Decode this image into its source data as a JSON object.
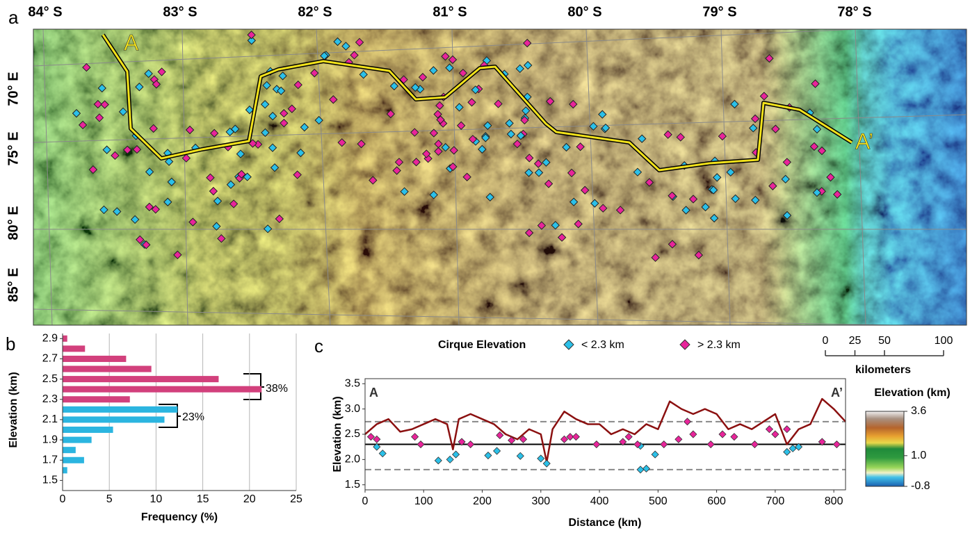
{
  "panel_labels": [
    "a",
    "b",
    "c"
  ],
  "chart_data": [
    {
      "type": "map",
      "top_labels": [
        "84° S",
        "83° S",
        "82° S",
        "81° S",
        "80° S",
        "79° S",
        "78° S"
      ],
      "left_labels": [
        "70° E",
        "75° E",
        "80° E",
        "85° E"
      ],
      "profile_labels": [
        "A",
        "A’"
      ],
      "colorbar": {
        "title": "Elevation (km)",
        "lim": [
          -0.8,
          3.6
        ],
        "ticks": [
          3.6,
          {
            "value": 1,
            "label": "1.0"
          },
          -0.8
        ]
      },
      "scale_bar": {
        "label": "kilometers",
        "lim": [
          0,
          100
        ],
        "ticks": [
          0,
          25,
          50,
          100
        ]
      }
    },
    {
      "type": "bar",
      "orientation": "horizontal",
      "xlabel": "Frequency (%)",
      "ylabel": "Elevation (km)",
      "y": [
        2.9,
        2.8,
        2.7,
        2.6,
        2.5,
        2.4,
        2.3,
        2.2,
        2.1,
        2.0,
        1.9,
        1.8,
        1.7,
        1.6
      ],
      "series": [
        {
          "color": "#d2407c",
          "values": [
            0.5,
            2.4,
            6.8,
            9.5,
            16.7,
            21.3,
            7.2,
            null,
            null,
            null,
            null,
            null,
            null,
            null
          ]
        },
        {
          "color": "#2bb5e0",
          "values": [
            null,
            null,
            null,
            null,
            null,
            null,
            null,
            12.3,
            10.9,
            5.4,
            3.1,
            1.4,
            2.3,
            0.5
          ]
        }
      ],
      "xlim": [
        0,
        25
      ],
      "xticks": [
        0,
        5,
        10,
        15,
        20,
        25
      ],
      "ylim": [
        1.4,
        2.95
      ],
      "yticks": [
        1.5,
        1.7,
        1.9,
        2.1,
        2.3,
        2.5,
        2.7,
        2.9
      ],
      "grid": true,
      "annotations": [
        "38%",
        "23%"
      ]
    },
    {
      "type": "line",
      "xlabel": "Distance (km)",
      "ylabel": "Elevation (km)",
      "end_labels": [
        "A",
        "A’"
      ],
      "legend_title": "Cirque Elevation",
      "xlim": [
        0,
        820
      ],
      "xticks": [
        0,
        100,
        200,
        300,
        400,
        500,
        600,
        700,
        800
      ],
      "ylim": [
        1.4,
        3.6
      ],
      "yticks": [
        1.5,
        {
          "value": 2,
          "label": "2.0"
        },
        2.5,
        {
          "value": 3,
          "label": "3.0"
        },
        3.5
      ],
      "hlines": [
        {
          "value": 2.3,
          "color": "#000000",
          "style": "solid"
        },
        {
          "value": 2.75,
          "color": "#888888",
          "style": "dashed"
        },
        {
          "value": 1.8,
          "color": "#888888",
          "style": "dashed"
        }
      ],
      "line": {
        "color": "#8b1010",
        "x": [
          0,
          20,
          40,
          60,
          80,
          100,
          120,
          140,
          150,
          160,
          180,
          200,
          220,
          240,
          260,
          280,
          300,
          310,
          320,
          340,
          360,
          380,
          400,
          420,
          440,
          460,
          480,
          500,
          520,
          540,
          560,
          580,
          600,
          620,
          640,
          660,
          680,
          700,
          720,
          740,
          760,
          780,
          800,
          820
        ],
        "values": [
          2.5,
          2.7,
          2.8,
          2.55,
          2.6,
          2.7,
          2.8,
          2.7,
          2.2,
          2.8,
          2.9,
          2.8,
          2.7,
          2.5,
          2.4,
          2.6,
          2.5,
          1.95,
          2.6,
          2.95,
          2.8,
          2.7,
          2.7,
          2.5,
          2.6,
          2.5,
          2.7,
          2.6,
          3.15,
          3.0,
          2.9,
          3.0,
          2.9,
          2.6,
          2.7,
          2.6,
          2.75,
          2.9,
          2.3,
          2.6,
          2.7,
          3.2,
          3.0,
          2.75
        ]
      },
      "series": [
        {
          "name": "< 2.3 km",
          "color": "#2bc0e8",
          "x": [
            20,
            30,
            125,
            145,
            155,
            210,
            225,
            265,
            300,
            310,
            470,
            480,
            495,
            720,
            730,
            740,
            470
          ],
          "values": [
            2.25,
            2.12,
            1.98,
            2.0,
            2.1,
            2.08,
            2.17,
            2.07,
            2.02,
            1.92,
            1.8,
            1.82,
            2.1,
            2.15,
            2.22,
            2.25,
            2.27
          ]
        },
        {
          "name": "> 2.3 km",
          "color": "#e8249a",
          "x": [
            10,
            20,
            85,
            95,
            165,
            180,
            230,
            250,
            270,
            340,
            350,
            360,
            395,
            440,
            450,
            465,
            510,
            535,
            550,
            560,
            590,
            610,
            630,
            665,
            690,
            700,
            720,
            780,
            805
          ],
          "values": [
            2.45,
            2.4,
            2.45,
            2.3,
            2.35,
            2.3,
            2.48,
            2.38,
            2.4,
            2.4,
            2.45,
            2.45,
            2.3,
            2.35,
            2.45,
            2.3,
            2.3,
            2.4,
            2.75,
            2.5,
            2.3,
            2.5,
            2.45,
            2.3,
            2.6,
            2.5,
            2.6,
            2.35,
            2.3
          ]
        }
      ]
    }
  ]
}
